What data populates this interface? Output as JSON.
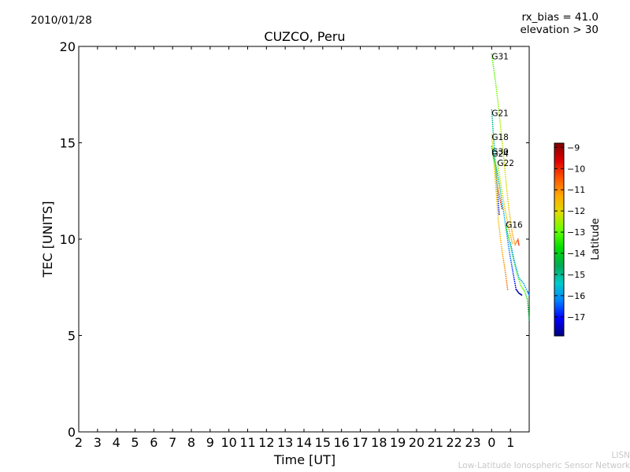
{
  "header": {
    "date": "2010/01/28",
    "rx_bias": "rx_bias = 41.0",
    "elevation": "elevation > 30"
  },
  "credit": {
    "line1": "LISN",
    "line2": "Low-Latitude Ionospheric Sensor Network"
  },
  "chart_data": {
    "type": "scatter",
    "title": "CUZCO, Peru",
    "xlabel": "Time [UT]",
    "ylabel": "TEC [UNITS]",
    "xlim": [
      2,
      26
    ],
    "ylim": [
      0,
      20
    ],
    "x_ticks": [
      "2",
      "3",
      "4",
      "5",
      "6",
      "7",
      "8",
      "9",
      "10",
      "11",
      "12",
      "13",
      "14",
      "15",
      "16",
      "17",
      "18",
      "19",
      "20",
      "21",
      "22",
      "23",
      "0",
      "1"
    ],
    "y_ticks": [
      0,
      5,
      10,
      15,
      20
    ],
    "colorbar": {
      "label": "Latitude",
      "range": [
        -17.9,
        -8.8
      ],
      "ticks": [
        -9,
        -10,
        -11,
        -12,
        -13,
        -14,
        -15,
        -16,
        -17
      ],
      "colors": [
        "#00007f",
        "#0000ff",
        "#0080ff",
        "#00cccc",
        "#00aa55",
        "#00dd00",
        "#66ff00",
        "#dddd00",
        "#ffaa00",
        "#ff5500",
        "#dd0000",
        "#800000"
      ]
    },
    "series": [
      {
        "name": "G31",
        "label_at": [
          24.0,
          19.5
        ],
        "points": [
          [
            24.0,
            19.6,
            -13.2
          ],
          [
            24.2,
            18.2,
            -13.0
          ],
          [
            24.35,
            17.0,
            -12.7
          ],
          [
            24.5,
            15.6,
            -12.5
          ],
          [
            24.65,
            14.2,
            -12.3
          ],
          [
            24.8,
            12.6,
            -12.0
          ],
          [
            24.95,
            11.3,
            -11.6
          ],
          [
            25.1,
            10.3,
            -11.3
          ],
          [
            25.25,
            9.7,
            -11.0
          ],
          [
            25.4,
            10.0,
            -10.4
          ],
          [
            25.45,
            9.7,
            -9.9
          ]
        ]
      },
      {
        "name": "G21",
        "label_at": [
          24.0,
          16.55
        ],
        "points": [
          [
            24.0,
            16.7,
            -14.9
          ],
          [
            24.1,
            15.3,
            -15.1
          ],
          [
            24.2,
            13.9,
            -15.6
          ],
          [
            24.3,
            12.6,
            -16.2
          ],
          [
            24.4,
            11.3,
            -17.2
          ]
        ]
      },
      {
        "name": "G18",
        "label_at": [
          24.0,
          15.3
        ],
        "points": [
          [
            24.0,
            15.4,
            -12.0
          ],
          [
            24.2,
            13.0,
            -11.8
          ],
          [
            24.35,
            11.0,
            -11.6
          ],
          [
            24.55,
            9.4,
            -11.3
          ],
          [
            24.7,
            8.5,
            -11.0
          ],
          [
            24.85,
            7.4,
            -10.5
          ]
        ]
      },
      {
        "name": "G30",
        "label_at": [
          24.0,
          14.55
        ],
        "points": [
          [
            24.0,
            14.8,
            -13.8
          ],
          [
            24.25,
            13.2,
            -11.5
          ],
          [
            24.4,
            12.3,
            -10.2
          ],
          [
            24.55,
            11.6,
            -9.6
          ]
        ]
      },
      {
        "name": "G24",
        "label_at": [
          24.0,
          14.45
        ],
        "points": [
          [
            24.05,
            14.5,
            -14.2
          ],
          [
            24.25,
            13.7,
            -14.5
          ],
          [
            24.45,
            12.6,
            -15.2
          ],
          [
            24.7,
            11.0,
            -15.8
          ],
          [
            24.95,
            9.3,
            -16.3
          ],
          [
            25.15,
            8.2,
            -16.8
          ],
          [
            25.3,
            7.4,
            -17.4
          ],
          [
            25.45,
            7.2,
            -17.7
          ],
          [
            25.6,
            7.1,
            -17.6
          ]
        ]
      },
      {
        "name": "G22",
        "label_at": [
          24.3,
          13.95
        ],
        "points": [
          [
            24.3,
            14.0,
            -12.6
          ],
          [
            24.5,
            12.8,
            -12.2
          ],
          [
            24.7,
            11.6,
            -11.8
          ],
          [
            24.9,
            10.6,
            -11.4
          ],
          [
            25.1,
            9.8,
            -11.2
          ]
        ]
      },
      {
        "name": "G16",
        "label_at": [
          24.75,
          10.75
        ],
        "points": [
          [
            24.75,
            10.7,
            -13.8
          ],
          [
            24.95,
            9.9,
            -13.5
          ],
          [
            25.15,
            9.0,
            -13.3
          ],
          [
            25.35,
            8.2,
            -13.1
          ],
          [
            25.55,
            7.6,
            -12.9
          ],
          [
            25.75,
            7.3,
            -13.3
          ],
          [
            25.9,
            6.9,
            -13.8
          ],
          [
            26.0,
            5.8,
            -14.5
          ]
        ]
      },
      {
        "name": "",
        "label_at": null,
        "points": [
          [
            25.0,
            9.8,
            -16.0
          ],
          [
            25.2,
            8.9,
            -15.9
          ],
          [
            25.45,
            8.0,
            -15.7
          ],
          [
            25.7,
            7.7,
            -15.9
          ],
          [
            25.9,
            7.3,
            -16.1
          ],
          [
            26.0,
            7.1,
            -16.3
          ]
        ]
      }
    ]
  }
}
